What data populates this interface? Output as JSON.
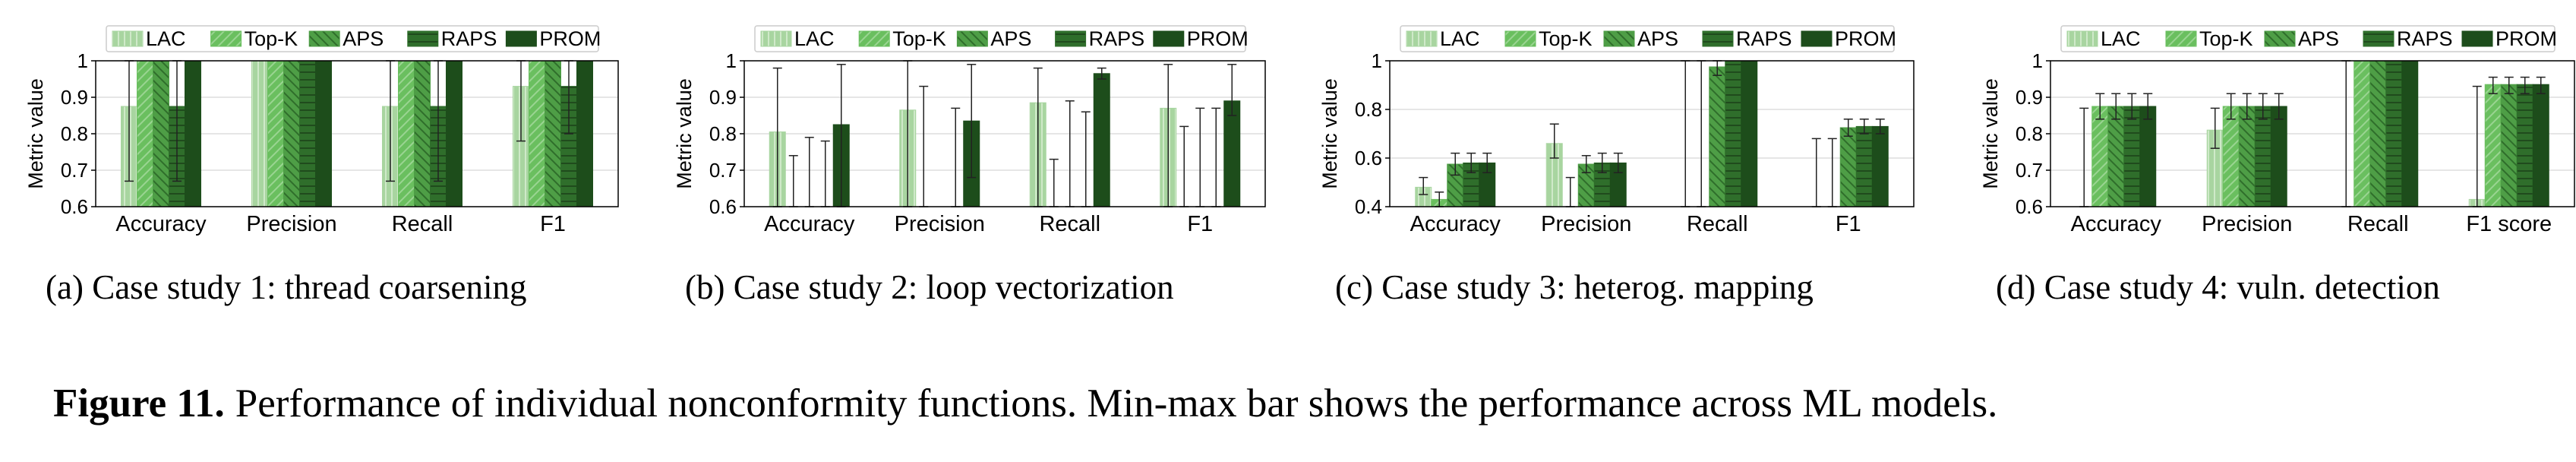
{
  "figure_caption": {
    "label": "Figure 11.",
    "text": "Performance of individual nonconformity functions. Min-max bar shows the performance across ML models."
  },
  "colors": {
    "LAC": "#a8d5a0",
    "Top-K": "#6abf5f",
    "APS": "#4e9e46",
    "RAPS": "#2f6e2b",
    "PROM": "#1d4d1b"
  },
  "chart_data": [
    {
      "type": "bar",
      "subcaption": "(a)  Case study 1: thread coarsening",
      "ylabel": "Metric value",
      "ylim": [
        0.6,
        1.0
      ],
      "yticks": [
        "0.6",
        "0.7",
        "0.8",
        "0.9",
        "1"
      ],
      "grid": true,
      "legend": "top",
      "categories": [
        "Accuracy",
        "Precision",
        "Recall",
        "F1"
      ],
      "series": [
        {
          "name": "LAC",
          "values": [
            0.875,
            1.0,
            0.875,
            0.93
          ],
          "err_min": [
            0.67,
            1.0,
            0.67,
            0.78
          ],
          "err_max": [
            1.0,
            1.0,
            1.0,
            1.0
          ]
        },
        {
          "name": "Top-K",
          "values": [
            1.0,
            1.0,
            1.0,
            1.0
          ],
          "err_min": [
            1.0,
            1.0,
            1.0,
            1.0
          ],
          "err_max": [
            1.0,
            1.0,
            1.0,
            1.0
          ]
        },
        {
          "name": "APS",
          "values": [
            1.0,
            1.0,
            1.0,
            1.0
          ],
          "err_min": [
            1.0,
            1.0,
            1.0,
            1.0
          ],
          "err_max": [
            1.0,
            1.0,
            1.0,
            1.0
          ]
        },
        {
          "name": "RAPS",
          "values": [
            0.875,
            1.0,
            0.875,
            0.93
          ],
          "err_min": [
            0.67,
            1.0,
            0.67,
            0.8
          ],
          "err_max": [
            1.0,
            1.0,
            1.0,
            1.0
          ]
        },
        {
          "name": "PROM",
          "values": [
            1.0,
            1.0,
            1.0,
            1.0
          ],
          "err_min": [
            1.0,
            1.0,
            1.0,
            1.0
          ],
          "err_max": [
            1.0,
            1.0,
            1.0,
            1.0
          ]
        }
      ]
    },
    {
      "type": "bar",
      "subcaption": "(b)  Case study 2: loop vectorization",
      "ylabel": "Metric value",
      "ylim": [
        0.6,
        1.0
      ],
      "yticks": [
        "0.6",
        "0.7",
        "0.8",
        "0.9",
        "1"
      ],
      "grid": true,
      "legend": "top",
      "categories": [
        "Accuracy",
        "Precision",
        "Recall",
        "F1"
      ],
      "series": [
        {
          "name": "LAC",
          "values": [
            0.805,
            0.865,
            0.885,
            0.87
          ],
          "err_min": [
            0.6,
            0.6,
            0.6,
            0.6
          ],
          "err_max": [
            0.98,
            1.0,
            0.98,
            0.99
          ]
        },
        {
          "name": "Top-K",
          "values": [
            0.6,
            0.6,
            0.6,
            0.6
          ],
          "err_min": [
            0.6,
            0.6,
            0.6,
            0.6
          ],
          "err_max": [
            0.74,
            0.93,
            0.73,
            0.82
          ]
        },
        {
          "name": "APS",
          "values": [
            0.6,
            0.6,
            0.6,
            0.6
          ],
          "err_min": [
            0.6,
            0.6,
            0.6,
            0.6
          ],
          "err_max": [
            0.79,
            0.6,
            0.89,
            0.87
          ]
        },
        {
          "name": "RAPS",
          "values": [
            0.6,
            0.6,
            0.6,
            0.6
          ],
          "err_min": [
            0.6,
            0.6,
            0.6,
            0.6
          ],
          "err_max": [
            0.78,
            0.87,
            0.86,
            0.87
          ]
        },
        {
          "name": "PROM",
          "values": [
            0.825,
            0.835,
            0.965,
            0.89
          ],
          "err_min": [
            0.6,
            0.68,
            0.95,
            0.85
          ],
          "err_max": [
            0.99,
            0.99,
            0.98,
            0.99
          ]
        }
      ]
    },
    {
      "type": "bar",
      "subcaption": "(c)  Case study 3: heterog. mapping",
      "ylabel": "Metric value",
      "ylim": [
        0.4,
        1.0
      ],
      "yticks": [
        "0.4",
        "0.6",
        "0.8",
        "1"
      ],
      "grid": true,
      "legend": "top",
      "categories": [
        "Accuracy",
        "Precision",
        "Recall",
        "F1"
      ],
      "series": [
        {
          "name": "LAC",
          "values": [
            0.48,
            0.66,
            0.4,
            0.4
          ],
          "err_min": [
            0.45,
            0.6,
            0.4,
            0.4
          ],
          "err_max": [
            0.52,
            0.74,
            1.0,
            0.68
          ]
        },
        {
          "name": "Top-K",
          "values": [
            0.43,
            0.4,
            0.4,
            0.4
          ],
          "err_min": [
            0.4,
            0.4,
            0.4,
            0.4
          ],
          "err_max": [
            0.46,
            0.52,
            1.0,
            0.68
          ]
        },
        {
          "name": "APS",
          "values": [
            0.575,
            0.575,
            0.975,
            0.725
          ],
          "err_min": [
            0.53,
            0.54,
            0.94,
            0.69
          ],
          "err_max": [
            0.62,
            0.61,
            1.0,
            0.76
          ]
        },
        {
          "name": "RAPS",
          "values": [
            0.58,
            0.58,
            1.0,
            0.73
          ],
          "err_min": [
            0.54,
            0.54,
            1.0,
            0.7
          ],
          "err_max": [
            0.62,
            0.62,
            1.0,
            0.76
          ]
        },
        {
          "name": "PROM",
          "values": [
            0.58,
            0.58,
            1.0,
            0.73
          ],
          "err_min": [
            0.54,
            0.54,
            1.0,
            0.7
          ],
          "err_max": [
            0.62,
            0.62,
            1.0,
            0.76
          ]
        }
      ]
    },
    {
      "type": "bar",
      "subcaption": "(d)  Case study 4: vuln. detection",
      "ylabel": "Metric value",
      "ylim": [
        0.6,
        1.0
      ],
      "yticks": [
        "0.6",
        "0.7",
        "0.8",
        "0.9",
        "1"
      ],
      "grid": true,
      "legend": "top",
      "categories": [
        "Accuracy",
        "Precision",
        "Recall",
        "F1 score"
      ],
      "series": [
        {
          "name": "LAC",
          "values": [
            0.6,
            0.81,
            0.6,
            0.62
          ],
          "err_min": [
            0.6,
            0.76,
            0.6,
            0.6
          ],
          "err_max": [
            0.87,
            0.87,
            1.0,
            0.93
          ]
        },
        {
          "name": "Top-K",
          "values": [
            0.875,
            0.875,
            1.0,
            0.935
          ],
          "err_min": [
            0.84,
            0.84,
            1.0,
            0.91
          ],
          "err_max": [
            0.91,
            0.91,
            1.0,
            0.955
          ]
        },
        {
          "name": "APS",
          "values": [
            0.875,
            0.875,
            1.0,
            0.935
          ],
          "err_min": [
            0.84,
            0.84,
            1.0,
            0.91
          ],
          "err_max": [
            0.91,
            0.91,
            1.0,
            0.955
          ]
        },
        {
          "name": "RAPS",
          "values": [
            0.875,
            0.875,
            1.0,
            0.935
          ],
          "err_min": [
            0.84,
            0.84,
            1.0,
            0.91
          ],
          "err_max": [
            0.91,
            0.91,
            1.0,
            0.955
          ]
        },
        {
          "name": "PROM",
          "values": [
            0.875,
            0.875,
            1.0,
            0.935
          ],
          "err_min": [
            0.84,
            0.84,
            1.0,
            0.91
          ],
          "err_max": [
            0.91,
            0.91,
            1.0,
            0.955
          ]
        }
      ]
    }
  ]
}
